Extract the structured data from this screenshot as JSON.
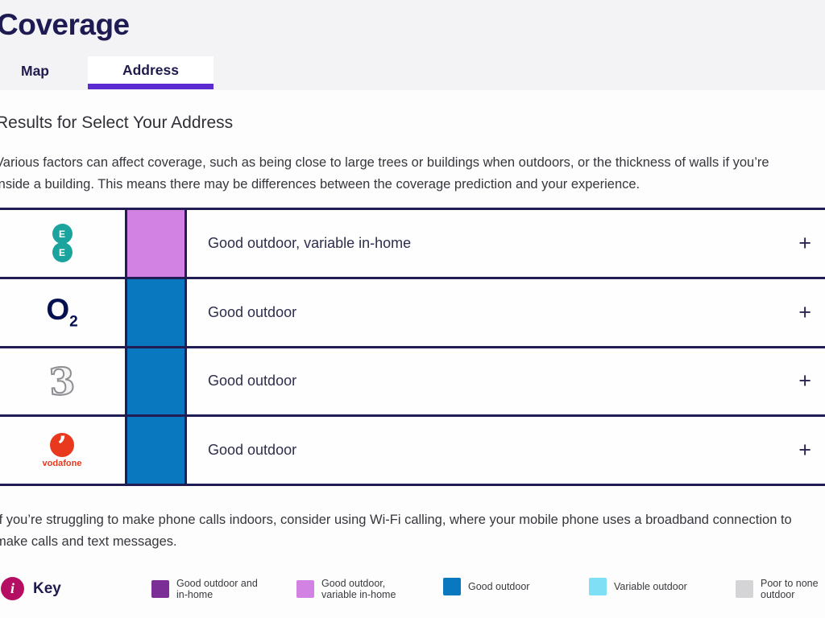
{
  "header": {
    "title": "Coverage",
    "tabs": [
      {
        "label": "Map",
        "active": false
      },
      {
        "label": "Address",
        "active": true
      }
    ]
  },
  "main": {
    "results_heading": "Results for Select Your Address",
    "intro": {
      "lines": [
        "Various factors can affect coverage, such as being close to large trees or buildings when outdoors, or the thickness of walls if you’re",
        "inside a building. This means there may be differences between the coverage prediction and your experience."
      ]
    },
    "wifi": {
      "lines": [
        "If you’re struggling to make phone calls indoors, consider using Wi-Fi calling, where your mobile phone uses a broadband connection to",
        "make calls and text messages."
      ]
    }
  },
  "table": {
    "rows": [
      {
        "provider": "EE",
        "logo_letters": [
          "E",
          "E"
        ],
        "coverage": "Good outdoor, variable in-home",
        "level": "good-outdoor-variable-in-home",
        "color": "#d282e2",
        "expand": "+"
      },
      {
        "provider": "O2",
        "logo_text": "O",
        "logo_sub": "2",
        "coverage": "Good outdoor",
        "level": "good-outdoor",
        "color": "#0a78bf",
        "expand": "+"
      },
      {
        "provider": "Three",
        "logo_text": "3",
        "coverage": "Good outdoor",
        "level": "good-outdoor",
        "color": "#0a78bf",
        "expand": "+"
      },
      {
        "provider": "Vodafone",
        "logo_text": "vodafone",
        "coverage": "Good outdoor",
        "level": "good-outdoor",
        "color": "#0a78bf",
        "expand": "+"
      }
    ]
  },
  "key": {
    "label": "Key",
    "info_glyph": "i",
    "items": [
      {
        "lines": [
          "Good outdoor and",
          "in-home"
        ],
        "label": "Good outdoor and in-home",
        "color": "#7b2e96"
      },
      {
        "lines": [
          "Good outdoor,",
          "variable in-home"
        ],
        "label": "Good outdoor, variable in-home",
        "color": "#d282e2"
      },
      {
        "lines": [
          "Good outdoor"
        ],
        "label": "Good outdoor",
        "color": "#0a78bf"
      },
      {
        "lines": [
          "Variable outdoor"
        ],
        "label": "Variable outdoor",
        "color": "#7edff5"
      },
      {
        "lines": [
          "Poor to none",
          "outdoor"
        ],
        "label": "Poor to none outdoor",
        "color": "#d4d4d7"
      }
    ]
  },
  "colors": {
    "accent_purple": "#5b2ad0",
    "border_navy": "#221c54",
    "title_navy": "#1e1a52",
    "info_magenta": "#b50f64"
  }
}
